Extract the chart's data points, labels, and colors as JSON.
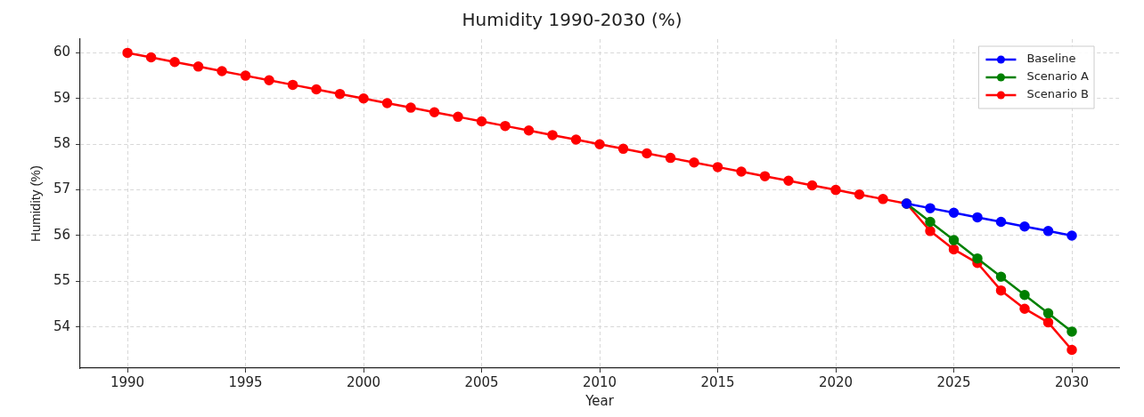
{
  "chart_data": {
    "type": "line",
    "title": "Humidity 1990-2030 (%)",
    "xlabel": "Year",
    "ylabel": "Humidity (%)",
    "xlim": [
      1988,
      2032
    ],
    "xticks": [
      1990,
      1995,
      2000,
      2005,
      2010,
      2015,
      2020,
      2025,
      2030
    ],
    "ylim": [
      53.1,
      60.3
    ],
    "yticks": [
      54,
      55,
      56,
      57,
      58,
      59,
      60
    ],
    "grid": true,
    "legend": "top right",
    "marker": "circle",
    "line_style": "solid",
    "series": [
      {
        "name": "Baseline",
        "color": "#0000ff",
        "x": [
          2023,
          2024,
          2025,
          2026,
          2027,
          2028,
          2029,
          2030
        ],
        "values": [
          56.7,
          56.6,
          56.5,
          56.4,
          56.3,
          56.2,
          56.1,
          56.0
        ]
      },
      {
        "name": "Scenario A",
        "color": "#008000",
        "x": [
          2023,
          2024,
          2025,
          2026,
          2027,
          2028,
          2029,
          2030
        ],
        "values": [
          56.7,
          56.3,
          55.9,
          55.5,
          55.1,
          54.7,
          54.3,
          53.9
        ]
      },
      {
        "name": "Scenario B",
        "color": "#ff0000",
        "x": [
          1990,
          1991,
          1992,
          1993,
          1994,
          1995,
          1996,
          1997,
          1998,
          1999,
          2000,
          2001,
          2002,
          2003,
          2004,
          2005,
          2006,
          2007,
          2008,
          2009,
          2010,
          2011,
          2012,
          2013,
          2014,
          2015,
          2016,
          2017,
          2018,
          2019,
          2020,
          2021,
          2022,
          2023,
          2024,
          2025,
          2026,
          2027,
          2028,
          2029,
          2030
        ],
        "values": [
          60.0,
          59.9,
          59.8,
          59.7,
          59.6,
          59.5,
          59.4,
          59.3,
          59.2,
          59.1,
          59.0,
          58.9,
          58.8,
          58.7,
          58.6,
          58.5,
          58.4,
          58.3,
          58.2,
          58.1,
          58.0,
          57.9,
          57.8,
          57.7,
          57.6,
          57.5,
          57.4,
          57.3,
          57.2,
          57.1,
          57.0,
          56.9,
          56.8,
          56.7,
          56.1,
          55.7,
          55.4,
          54.8,
          54.4,
          54.1,
          53.5
        ]
      }
    ]
  }
}
